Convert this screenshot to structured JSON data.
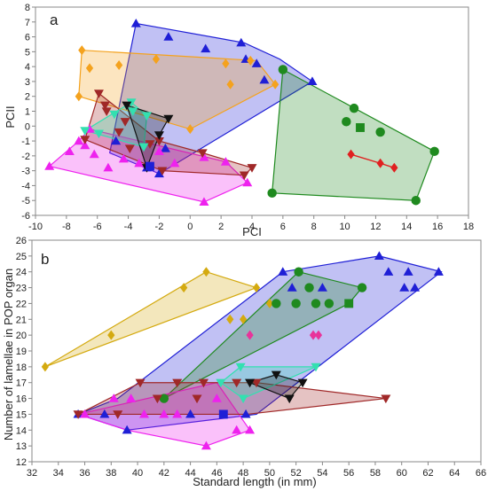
{
  "colors": {
    "blue": "#1f1fd6",
    "orange": "#f4a21e",
    "green": "#1f8a1f",
    "red": "#e02020",
    "darkred": "#a02828",
    "magenta": "#ee22ee",
    "teal": "#33e0b0",
    "black": "#111111",
    "gold": "#d4aa10",
    "pink": "#e8349a",
    "brown": "#8b4a1c",
    "axis": "#888888"
  },
  "chart_data": [
    {
      "type": "scatter",
      "panel": "a",
      "xlabel": "PCI",
      "ylabel": "PCII",
      "xlim": [
        -10,
        18
      ],
      "ylim": [
        -6,
        8
      ],
      "xticks": [
        -10,
        -8,
        -6,
        -4,
        -2,
        0,
        2,
        4,
        6,
        8,
        10,
        12,
        14,
        16,
        18
      ],
      "yticks": [
        -6,
        -5,
        -4,
        -3,
        -2,
        -1,
        0,
        1,
        2,
        3,
        4,
        5,
        6,
        7,
        8
      ],
      "hulls": [
        {
          "color": "blue",
          "points": [
            [
              -3.5,
              6.9
            ],
            [
              3.5,
              5.6
            ],
            [
              5.8,
              4.5
            ],
            [
              7.9,
              3.0
            ],
            [
              -2.0,
              -3.2
            ],
            [
              -5.2,
              -1.8
            ]
          ]
        },
        {
          "color": "orange",
          "points": [
            [
              -7.0,
              5.1
            ],
            [
              4.3,
              4.4
            ],
            [
              5.5,
              2.8
            ],
            [
              0.0,
              -0.2
            ],
            [
              -7.2,
              2.0
            ]
          ]
        },
        {
          "color": "green",
          "points": [
            [
              6.0,
              3.8
            ],
            [
              15.8,
              -1.7
            ],
            [
              14.6,
              -5.0
            ],
            [
              5.3,
              -4.5
            ]
          ]
        },
        {
          "color": "magenta",
          "points": [
            [
              -7.2,
              -1.0
            ],
            [
              -6.5,
              -0.2
            ],
            [
              2.3,
              -2.4
            ],
            [
              3.7,
              -3.8
            ],
            [
              0.9,
              -5.1
            ],
            [
              -9.1,
              -2.7
            ]
          ]
        },
        {
          "color": "darkred",
          "points": [
            [
              -5.9,
              2.2
            ],
            [
              -2.0,
              -1.0
            ],
            [
              0.8,
              -1.8
            ],
            [
              4.0,
              -2.8
            ],
            [
              3.5,
              -3.3
            ],
            [
              -1.8,
              -3.0
            ],
            [
              -6.8,
              -0.9
            ]
          ]
        },
        {
          "color": "teal",
          "points": [
            [
              -3.8,
              1.6
            ],
            [
              -2.8,
              0.7
            ],
            [
              -3.0,
              -1.4
            ],
            [
              -6.8,
              -0.3
            ]
          ]
        },
        {
          "color": "black",
          "points": [
            [
              -4.1,
              1.4
            ],
            [
              -1.4,
              0.5
            ],
            [
              -2.0,
              -0.6
            ],
            [
              -2.8,
              -2.8
            ]
          ]
        }
      ],
      "series": [
        {
          "marker": "triangle-up",
          "color": "blue",
          "x": [
            -3.5,
            -1.4,
            1.0,
            3.3,
            3.6,
            4.3,
            4.8,
            7.9,
            -2.8,
            -2.0,
            -1.6,
            -4.8
          ],
          "y": [
            6.9,
            6.0,
            5.2,
            5.6,
            4.5,
            4.2,
            3.1,
            3.0,
            -2.8,
            -3.2,
            -1.5,
            -1.0
          ]
        },
        {
          "marker": "diamond",
          "color": "orange",
          "x": [
            -7.0,
            -6.5,
            -4.6,
            -2.2,
            2.3,
            3.9,
            5.5,
            2.6,
            0.0,
            -7.2
          ],
          "y": [
            5.1,
            3.9,
            4.1,
            4.5,
            4.2,
            4.4,
            2.8,
            2.8,
            -0.2,
            2.0
          ]
        },
        {
          "marker": "circle",
          "color": "green",
          "x": [
            6.0,
            10.6,
            10.1,
            12.3,
            15.8,
            14.6,
            5.3
          ],
          "y": [
            3.8,
            1.2,
            0.3,
            -0.4,
            -1.7,
            -5.0,
            -4.5
          ]
        },
        {
          "marker": "square",
          "color": "green",
          "x": [
            11.0
          ],
          "y": [
            -0.1
          ]
        },
        {
          "marker": "diamond",
          "color": "red",
          "x": [
            10.4,
            12.3,
            13.2
          ],
          "y": [
            -1.9,
            -2.5,
            -2.8
          ],
          "connected": true
        },
        {
          "marker": "triangle-up",
          "color": "magenta",
          "x": [
            -7.2,
            -6.5,
            -9.1,
            -7.8,
            -6.2,
            -4.3,
            -3.3,
            -1.0,
            0.9,
            2.3,
            3.7,
            0.9,
            -5.3,
            -6.8,
            -2.0
          ],
          "y": [
            -1.0,
            -0.2,
            -2.7,
            -1.7,
            -1.9,
            -2.2,
            -2.5,
            -2.5,
            -2.1,
            -2.4,
            -3.8,
            -5.1,
            -2.8,
            -1.3,
            -1.7
          ]
        },
        {
          "marker": "triangle-down",
          "color": "darkred",
          "x": [
            -5.9,
            -5.5,
            -4.2,
            -3.9,
            -2.6,
            -1.8,
            -2.0,
            0.8,
            4.0,
            3.5,
            -6.8,
            -4.6,
            -5.4
          ],
          "y": [
            2.2,
            1.4,
            0.3,
            -1.5,
            -1.2,
            -3.0,
            -1.0,
            -1.8,
            -2.8,
            -3.3,
            -0.9,
            -0.4,
            1.0
          ]
        },
        {
          "marker": "triangle-down",
          "color": "teal",
          "x": [
            -3.8,
            -2.8,
            -3.0,
            -6.8,
            -4.9,
            -5.9,
            -3.7
          ],
          "y": [
            1.6,
            0.7,
            -1.4,
            -0.3,
            0.8,
            -0.5,
            1.0
          ]
        },
        {
          "marker": "triangle-down",
          "color": "black",
          "x": [
            -4.1,
            -1.4,
            -2.0,
            -2.8
          ],
          "y": [
            1.4,
            0.5,
            -0.6,
            -2.8
          ]
        },
        {
          "marker": "square",
          "color": "blue",
          "x": [
            -2.6
          ],
          "y": [
            -2.7
          ]
        }
      ]
    },
    {
      "type": "scatter",
      "panel": "b",
      "xlabel": "Standard length (in mm)",
      "ylabel": "Number of lamellae in POP organ",
      "xlim": [
        32,
        66
      ],
      "ylim": [
        12,
        26
      ],
      "xticks": [
        32,
        34,
        36,
        38,
        40,
        42,
        44,
        46,
        48,
        50,
        52,
        54,
        56,
        58,
        60,
        62,
        64,
        66
      ],
      "yticks": [
        12,
        13,
        14,
        15,
        16,
        17,
        18,
        19,
        20,
        21,
        22,
        23,
        24,
        25,
        26
      ],
      "hulls": [
        {
          "color": "blue",
          "points": [
            [
              58.3,
              25.0
            ],
            [
              63.0,
              24.0
            ],
            [
              49.0,
              15.0
            ],
            [
              39.2,
              14.0
            ],
            [
              35.5,
              15.0
            ],
            [
              38.5,
              16.0
            ],
            [
              51.0,
              24.0
            ]
          ]
        },
        {
          "color": "gold",
          "points": [
            [
              45.2,
              24.0
            ],
            [
              49.0,
              23.0
            ],
            [
              33.0,
              18.0
            ]
          ]
        },
        {
          "color": "green",
          "points": [
            [
              52.2,
              24.0
            ],
            [
              57.0,
              23.0
            ],
            [
              56.0,
              22.0
            ],
            [
              42.0,
              16.0
            ]
          ]
        },
        {
          "color": "magenta",
          "points": [
            [
              35.5,
              15.0
            ],
            [
              46.0,
              17.0
            ],
            [
              48.5,
              14.0
            ],
            [
              45.2,
              13.0
            ],
            [
              39.2,
              14.0
            ]
          ]
        },
        {
          "color": "darkred",
          "points": [
            [
              40.2,
              17.0
            ],
            [
              49.0,
              17.0
            ],
            [
              58.8,
              16.0
            ],
            [
              48.3,
              15.0
            ],
            [
              35.5,
              15.0
            ]
          ]
        },
        {
          "color": "teal",
          "points": [
            [
              47.8,
              18.0
            ],
            [
              53.5,
              18.0
            ],
            [
              48.0,
              16.0
            ],
            [
              46.3,
              17.0
            ]
          ]
        },
        {
          "color": "black",
          "points": [
            [
              50.5,
              17.5
            ],
            [
              52.5,
              17.0
            ],
            [
              51.5,
              16.0
            ],
            [
              48.5,
              17.0
            ]
          ]
        }
      ],
      "series": [
        {
          "marker": "triangle-up",
          "color": "blue",
          "x": [
            58.3,
            59.0,
            60.5,
            62.8,
            51.0,
            51.7,
            60.2,
            61.0,
            39.2,
            44.0,
            48.2,
            54.0,
            35.5,
            37.5
          ],
          "y": [
            25.0,
            24.0,
            24.0,
            24.0,
            24.0,
            23.0,
            23.0,
            23.0,
            14.0,
            15.0,
            15.0,
            23.0,
            15.0,
            15.0
          ]
        },
        {
          "marker": "diamond",
          "color": "gold",
          "x": [
            45.2,
            43.5,
            49.0,
            33.0,
            38.0,
            47.0,
            48.0,
            50.0
          ],
          "y": [
            24.0,
            23.0,
            23.0,
            18.0,
            20.0,
            21.0,
            21.0,
            22.0
          ]
        },
        {
          "marker": "circle",
          "color": "green",
          "x": [
            52.2,
            53.0,
            57.0,
            50.5,
            52.0,
            53.5,
            54.5,
            42.0
          ],
          "y": [
            24.0,
            23.0,
            23.0,
            22.0,
            22.0,
            22.0,
            22.0,
            16.0
          ]
        },
        {
          "marker": "square",
          "color": "green",
          "x": [
            56.0
          ],
          "y": [
            22.0
          ]
        },
        {
          "marker": "diamond",
          "color": "pink",
          "x": [
            48.5,
            53.3,
            53.7
          ],
          "y": [
            20.0,
            20.0,
            20.0
          ]
        },
        {
          "marker": "triangle-up",
          "color": "magenta",
          "x": [
            38.2,
            39.5,
            40.5,
            42.0,
            43.0,
            45.2,
            46.0,
            47.5,
            48.5,
            36.0
          ],
          "y": [
            16.0,
            16.0,
            15.0,
            15.0,
            15.0,
            13.0,
            16.0,
            14.0,
            14.0,
            15.0
          ]
        },
        {
          "marker": "triangle-down",
          "color": "darkred",
          "x": [
            40.2,
            43.0,
            45.0,
            47.5,
            49.0,
            58.8,
            35.5,
            38.5,
            44.5,
            41.5
          ],
          "y": [
            17.0,
            17.0,
            17.0,
            17.0,
            17.0,
            16.0,
            15.0,
            15.0,
            16.0,
            16.0
          ]
        },
        {
          "marker": "triangle-down",
          "color": "teal",
          "x": [
            47.8,
            53.5,
            48.0,
            46.3
          ],
          "y": [
            18.0,
            18.0,
            16.0,
            17.0
          ]
        },
        {
          "marker": "triangle-down",
          "color": "black",
          "x": [
            50.5,
            52.5,
            51.5,
            48.5
          ],
          "y": [
            17.5,
            17.0,
            16.0,
            17.0
          ]
        },
        {
          "marker": "square",
          "color": "blue",
          "x": [
            46.5
          ],
          "y": [
            15.0
          ]
        }
      ]
    }
  ]
}
